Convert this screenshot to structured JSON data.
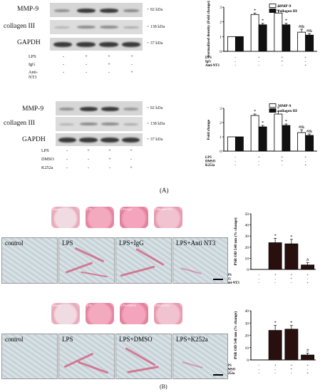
{
  "panelA": {
    "label": "(A)",
    "blot1": {
      "rows": [
        "MMP-9",
        "collagen III",
        "GAPDH"
      ],
      "kda": [
        "~ 92 kDa",
        "~ 138 kDa",
        "~ 37 kDa"
      ],
      "treatments": [
        {
          "name": "LPS",
          "signs": [
            "-",
            "+",
            "+",
            "+"
          ]
        },
        {
          "name": "IgG",
          "signs": [
            "-",
            "-",
            "+",
            "-"
          ]
        },
        {
          "name": "Anti-NT3",
          "signs": [
            "-",
            "-",
            "-",
            "+"
          ]
        }
      ]
    },
    "blot2": {
      "rows": [
        "MMP-9",
        "collagen III",
        "GAPDH"
      ],
      "kda": [
        "~ 92 kDa",
        "~ 138 kDa",
        "~ 37 kDa"
      ],
      "treatments": [
        {
          "name": "LPS",
          "signs": [
            "-",
            "+",
            "+",
            "+"
          ]
        },
        {
          "name": "DMSO",
          "signs": [
            "-",
            "-",
            "+",
            "-"
          ]
        },
        {
          "name": "K252a",
          "signs": [
            "-",
            "-",
            "-",
            "+"
          ]
        }
      ]
    }
  },
  "panelB": {
    "label": "(B)",
    "set1": {
      "dish_labels": [
        "control",
        "LPS",
        "LPS+IgG",
        "LPS+anti-NT3"
      ],
      "mic_labels": [
        "control",
        "LPS",
        "LPS+IgG",
        "LPS+Anti NT3"
      ]
    },
    "set2": {
      "dish_labels": [
        "control",
        "LPS",
        "LPS+DMSO",
        "LPS+K252a"
      ],
      "mic_labels": [
        "control",
        "LPS",
        "LPS+DMSO",
        "LPS+K252a"
      ]
    }
  },
  "chart_data": [
    {
      "type": "bar",
      "ylabel": "Normalized density (Fold change)",
      "ylim": [
        0,
        3
      ],
      "yticks": [
        "0",
        "1",
        "2",
        "3"
      ],
      "groups": 4,
      "series": [
        {
          "name": "MMP-9",
          "color": "#ffffff",
          "values": [
            1.0,
            2.5,
            2.6,
            1.3
          ],
          "errors": [
            0,
            0.1,
            0.2,
            0.2
          ]
        },
        {
          "name": "collagen III",
          "color": "#111111",
          "values": [
            1.0,
            1.8,
            1.8,
            1.1
          ],
          "errors": [
            0,
            0.1,
            0.1,
            0.1
          ]
        }
      ],
      "annotations": [
        "*",
        "*",
        "*",
        "*",
        "#&",
        "#&"
      ],
      "treatments": [
        {
          "name": "LPS",
          "signs": [
            "-",
            "+",
            "+",
            "+"
          ]
        },
        {
          "name": "IgG",
          "signs": [
            "-",
            "-",
            "+",
            "-"
          ]
        },
        {
          "name": "Anti-NT3",
          "signs": [
            "-",
            "-",
            "-",
            "+"
          ]
        }
      ],
      "legend": "top-right"
    },
    {
      "type": "bar",
      "ylabel": "Fold change",
      "ylim": [
        0,
        3
      ],
      "yticks": [
        "0",
        "1",
        "2",
        "3"
      ],
      "groups": 4,
      "series": [
        {
          "name": "MMP-9",
          "color": "#ffffff",
          "values": [
            1.0,
            2.5,
            2.6,
            1.3
          ],
          "errors": [
            0,
            0.1,
            0.2,
            0.2
          ]
        },
        {
          "name": "collagen III",
          "color": "#111111",
          "values": [
            1.0,
            1.7,
            1.8,
            1.1
          ],
          "errors": [
            0,
            0.1,
            0.1,
            0.1
          ]
        }
      ],
      "annotations": [
        "*",
        "*",
        "*",
        "*",
        "#&",
        "#&"
      ],
      "treatments": [
        {
          "name": "LPS",
          "signs": [
            "-",
            "+",
            "+",
            "+"
          ]
        },
        {
          "name": "DMSO",
          "signs": [
            "-",
            "-",
            "+",
            "-"
          ]
        },
        {
          "name": "K252a",
          "signs": [
            "-",
            "-",
            "-",
            "+"
          ]
        }
      ],
      "legend": "top-right"
    },
    {
      "type": "bar",
      "ylabel": "PSR OD 540 nm (% change)",
      "ylim": [
        0,
        50
      ],
      "yticks": [
        "0",
        "10",
        "20",
        "30",
        "40",
        "50"
      ],
      "series": [
        {
          "name": "",
          "color": "#2a0f0f",
          "values": [
            0,
            24,
            23,
            4
          ],
          "errors": [
            0,
            4,
            4,
            2
          ]
        }
      ],
      "annotations": [
        "*",
        "*",
        "#"
      ],
      "treatments": [
        {
          "name": "LPS",
          "signs": [
            "-",
            "+",
            "+",
            "+"
          ]
        },
        {
          "name": "IgG",
          "signs": [
            "-",
            "-",
            "+",
            "-"
          ]
        },
        {
          "name": "Anti-NT3",
          "signs": [
            "-",
            "-",
            "-",
            "+"
          ]
        }
      ]
    },
    {
      "type": "bar",
      "ylabel": "PSR OD 540 nm (% change)",
      "ylim": [
        0,
        40
      ],
      "yticks": [
        "0",
        "10",
        "20",
        "30",
        "40"
      ],
      "series": [
        {
          "name": "",
          "color": "#2a0f0f",
          "values": [
            0,
            24,
            25,
            4
          ],
          "errors": [
            0,
            4,
            3,
            1.5
          ]
        }
      ],
      "annotations": [
        "*",
        "*",
        "#"
      ],
      "treatments": [
        {
          "name": "LPS",
          "signs": [
            "-",
            "+",
            "+",
            "+"
          ]
        },
        {
          "name": "DMSO",
          "signs": [
            "-",
            "-",
            "+",
            "-"
          ]
        },
        {
          "name": "K252a",
          "signs": [
            "-",
            "-",
            "-",
            "+"
          ]
        }
      ]
    }
  ]
}
